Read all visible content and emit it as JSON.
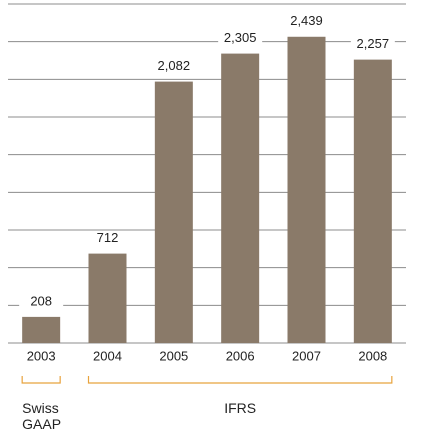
{
  "chart_data": {
    "type": "bar",
    "categories": [
      "2003",
      "2004",
      "2005",
      "2006",
      "2007",
      "2008"
    ],
    "values": [
      208,
      712,
      2082,
      2305,
      2439,
      2257
    ],
    "value_labels": [
      "208",
      "712",
      "2,082",
      "2,305",
      "2,439",
      "2,257"
    ],
    "color": "#8a7a69",
    "ylim": [
      0,
      2700
    ],
    "yticks": [
      0,
      300,
      600,
      900,
      1200,
      1500,
      1800,
      2100,
      2400,
      2700
    ],
    "grid": true,
    "groups": [
      {
        "label": "Swiss GAAP",
        "from": 0,
        "to": 0,
        "color": "#e8a33d"
      },
      {
        "label": "IFRS",
        "from": 1,
        "to": 5,
        "color": "#e8a33d"
      }
    ]
  }
}
